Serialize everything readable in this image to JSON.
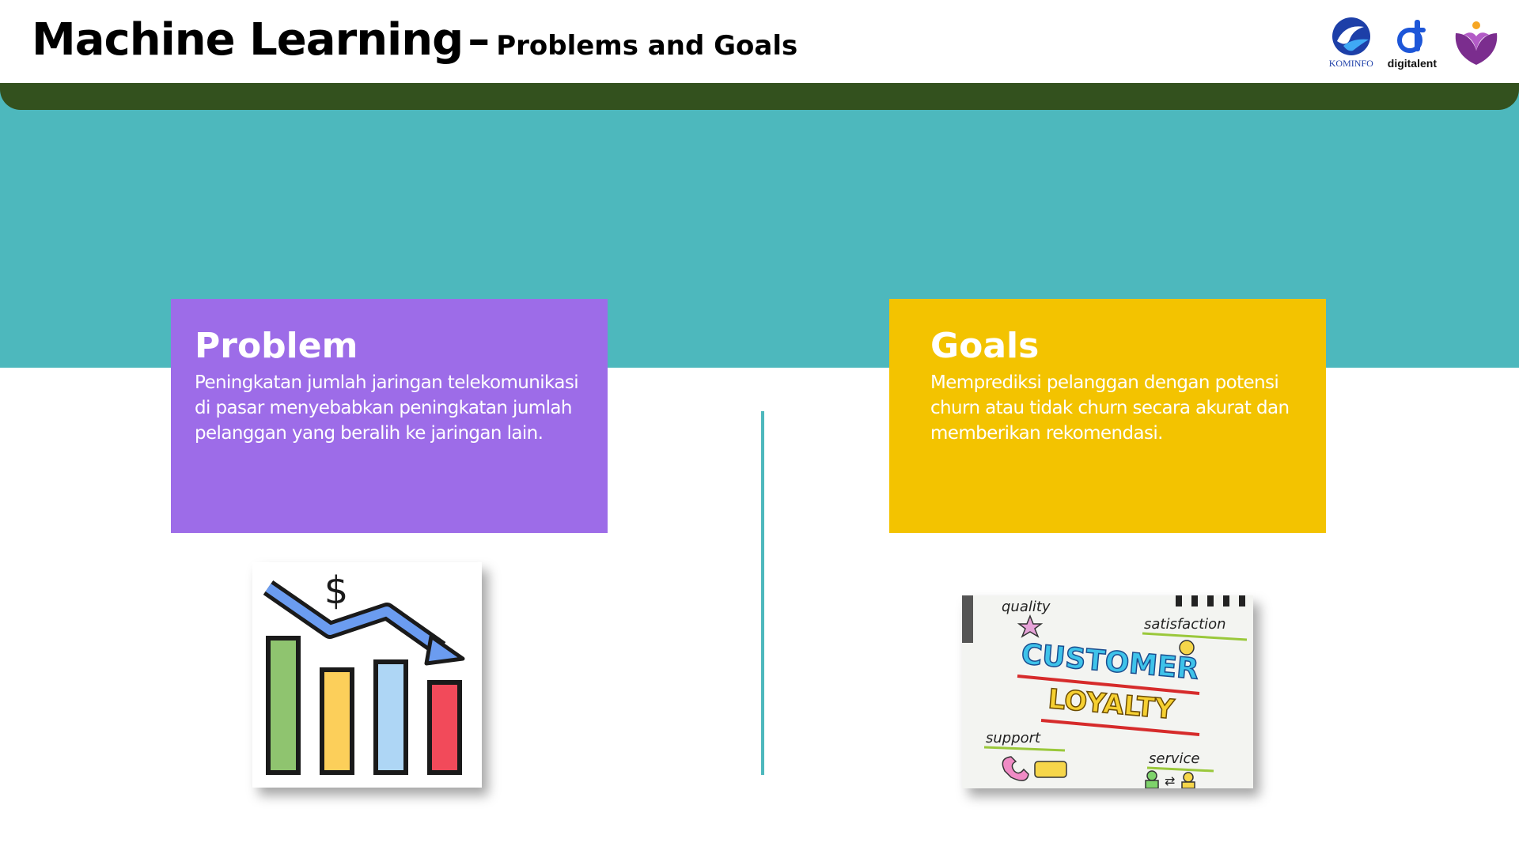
{
  "header": {
    "title_main": "Machine Learning",
    "title_dash": "–",
    "title_sub": "Problems and Goals",
    "logos": {
      "kominfo_caption": "KOMINFO",
      "digitalent_caption": "digitalent"
    }
  },
  "colors": {
    "teal_band": "#4db8bd",
    "dark_green_bar": "#33511e",
    "problem_card": "#9d6ce8",
    "goals_card": "#f3c300"
  },
  "problem": {
    "heading": "Problem",
    "body": "Peningkatan jumlah jaringan telekomunikasi di pasar menyebabkan peningkatan jumlah pelanggan yang beralih ke jaringan lain."
  },
  "goals": {
    "heading": "Goals",
    "body": "Memprediksi pelanggan dengan potensi churn atau tidak churn secara akurat dan memberikan rekomendasi."
  },
  "loyalty_image": {
    "words": [
      "quality",
      "satisfaction",
      "CUSTOMER",
      "LOYALTY",
      "support",
      "service"
    ]
  },
  "icons": [
    "kominfo-logo",
    "digitalent-logo",
    "v-logo",
    "declining-revenue-chart-icon",
    "customer-loyalty-image"
  ]
}
